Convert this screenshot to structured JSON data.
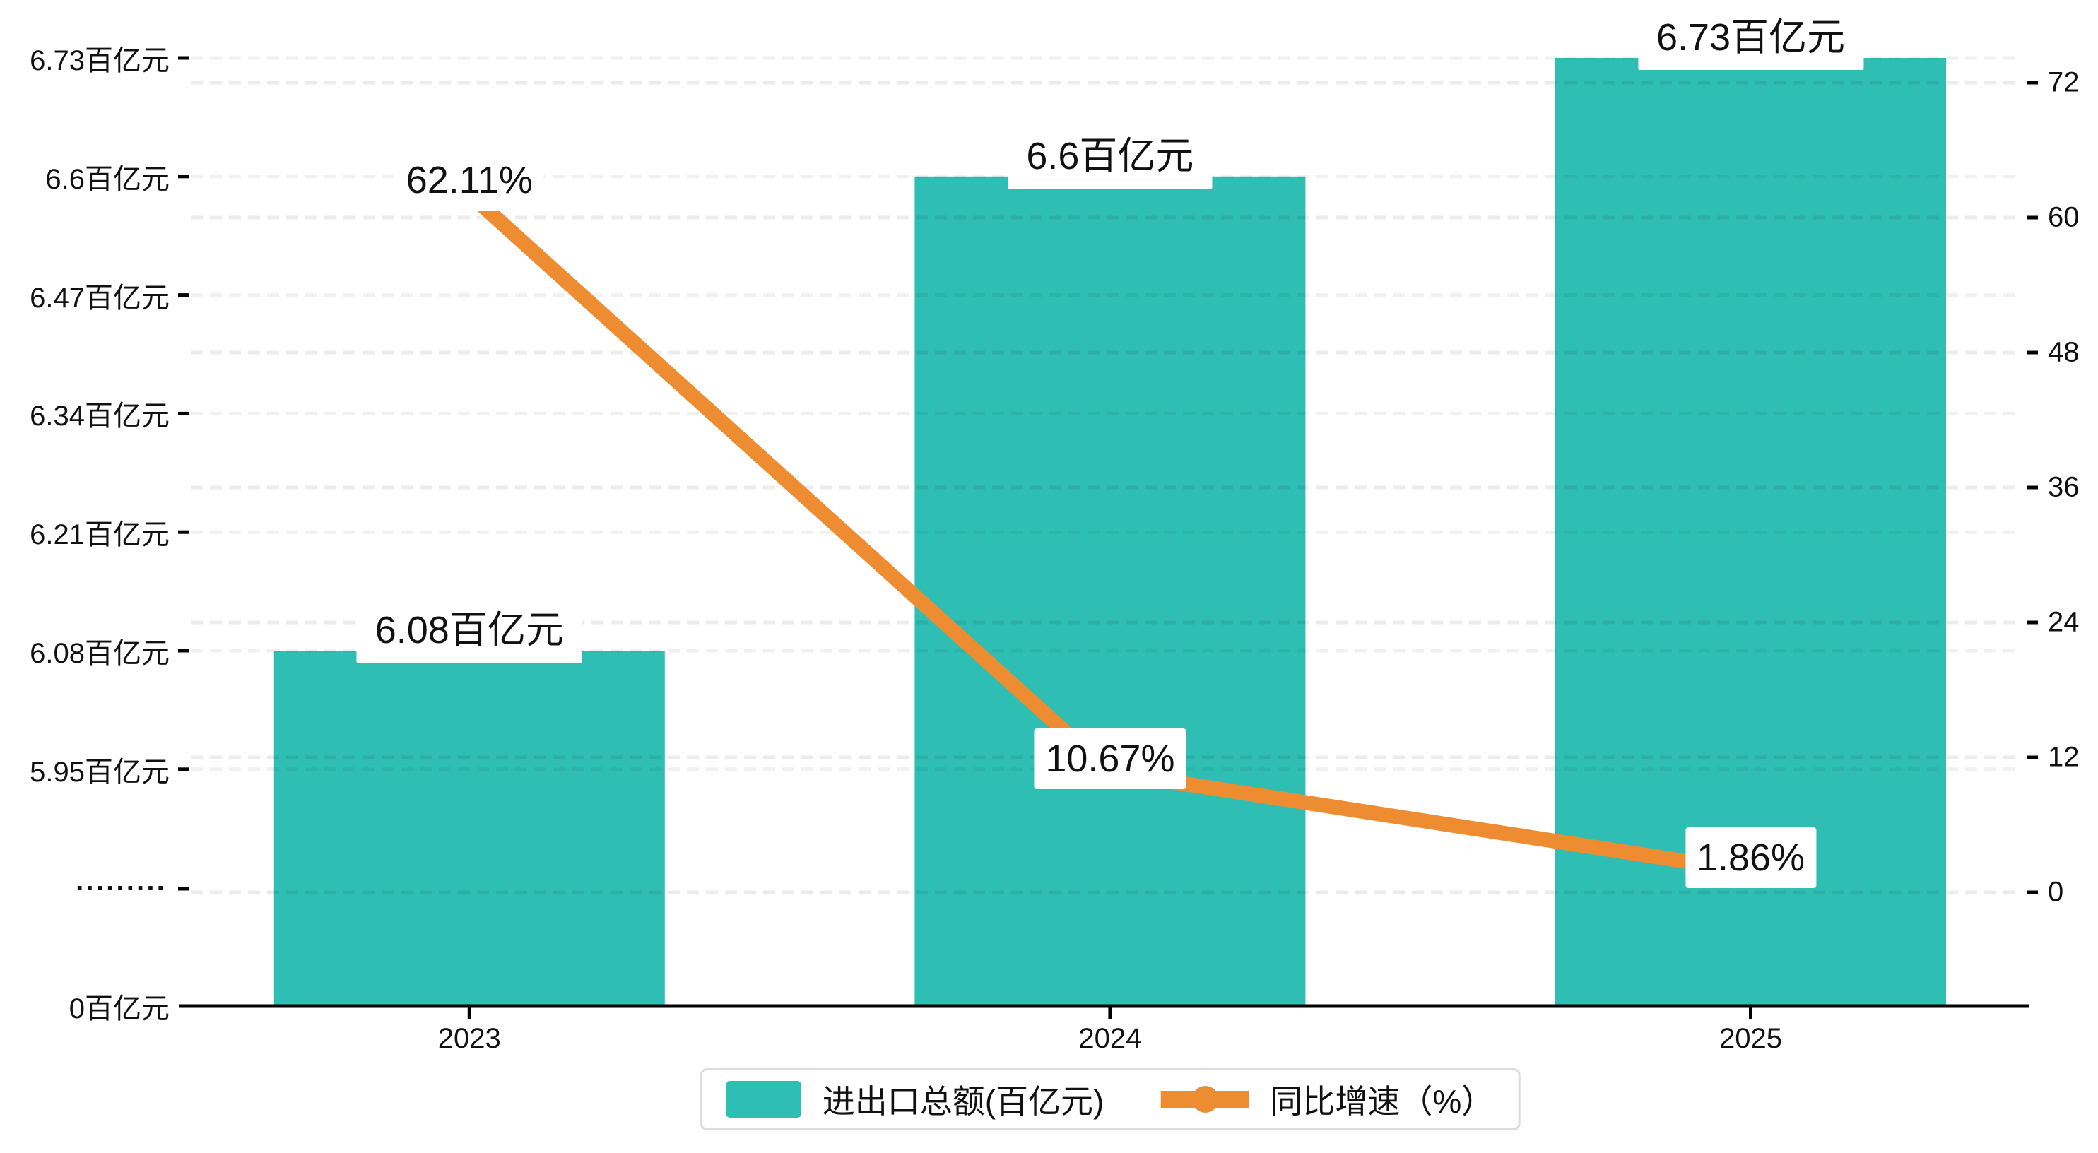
{
  "chart_data": {
    "type": "bar",
    "subtype": "bar-line-combo-dual-axis",
    "categories": [
      "2023",
      "2024",
      "2025"
    ],
    "series": [
      {
        "name": "进出口总额(百亿元)",
        "type": "bar",
        "axis": "left",
        "values": [
          6.08,
          6.6,
          6.73
        ],
        "data_labels": [
          "6.08百亿元",
          "6.6百亿元",
          "6.73百亿元"
        ],
        "color": "#2FBEB4"
      },
      {
        "name": "同比增速（%）",
        "type": "line",
        "axis": "right",
        "values": [
          62.11,
          10.67,
          1.86
        ],
        "data_labels": [
          "62.11%",
          "10.67%",
          "1.86%"
        ],
        "color": "#EE8C31"
      }
    ],
    "left_axis": {
      "tick_labels": [
        "6.73百亿元",
        "6.6百亿元",
        "6.47百亿元",
        "6.34百亿元",
        "6.21百亿元",
        "6.08百亿元",
        "5.95百亿元"
      ],
      "tick_values": [
        6.73,
        6.6,
        6.47,
        6.34,
        6.21,
        6.08,
        5.95
      ],
      "axis_break": true,
      "break_marker": "·········",
      "zero_label": "0百亿元"
    },
    "right_axis": {
      "tick_labels": [
        "72",
        "60",
        "48",
        "36",
        "24",
        "12",
        "0"
      ],
      "tick_values": [
        72,
        60,
        48,
        36,
        24,
        12,
        0
      ],
      "min": 0,
      "max": 72
    },
    "x_axis": {
      "tick_labels": [
        "2023",
        "2024",
        "2025"
      ]
    },
    "grid": "dashed",
    "legend_position": "bottom"
  },
  "legend": {
    "items": [
      {
        "label": "进出口总额(百亿元)",
        "marker": "bar-swatch"
      },
      {
        "label": "同比增速（%）",
        "marker": "line-dot"
      }
    ]
  },
  "colors": {
    "bar": "#2FBEB4",
    "line": "#EE8C31",
    "axis_line": "#000000",
    "text": "#111111",
    "label_bg": "#ffffff",
    "grid_left": "rgba(0,0,0,0.055)",
    "grid_right": "rgba(0,0,0,0.075)",
    "legend_border": "#dcdcdc"
  }
}
